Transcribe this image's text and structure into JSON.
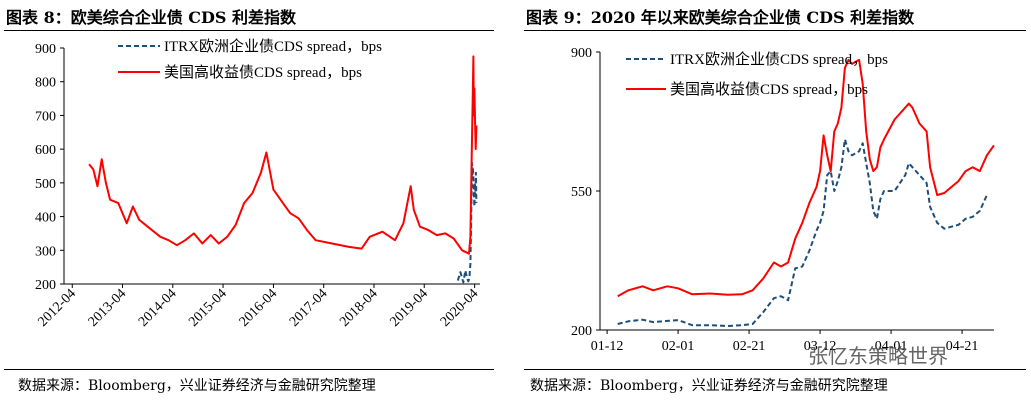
{
  "figures": [
    {
      "title": "图表 8：欧美综合企业债 CDS 利差指数",
      "source": "数据来源：Bloomberg，兴业证券经济与金融研究院整理"
    },
    {
      "title": "图表 9：2020 年以来欧美综合企业债 CDS 利差指数",
      "source": "数据来源：Bloomberg，兴业证券经济与金融研究院整理"
    }
  ],
  "watermark": "张忆东策略世界",
  "colors": {
    "itrx": "#1f4e79",
    "us_hy": "#ff0000"
  },
  "chart_data": [
    {
      "type": "line",
      "title": "图表 8：欧美综合企业债 CDS 利差指数",
      "x_tick_labels": [
        "2012-04",
        "2013-04",
        "2014-04",
        "2015-04",
        "2016-04",
        "2017-04",
        "2018-04",
        "2019-04",
        "2020-04"
      ],
      "y_tick_labels": [
        "200",
        "300",
        "400",
        "500",
        "600",
        "700",
        "800",
        "900"
      ],
      "ylim": [
        200,
        900
      ],
      "legend_position": "top-center",
      "series": [
        {
          "name": "ITRX欧洲企业债CDS spread，bps",
          "style": "dashed",
          "points": [
            [
              "2019-12-01",
              210
            ],
            [
              "2019-12-20",
              235
            ],
            [
              "2020-01-10",
              205
            ],
            [
              "2020-01-25",
              240
            ],
            [
              "2020-02-05",
              220
            ],
            [
              "2020-02-15",
              208
            ],
            [
              "2020-02-22",
              215
            ],
            [
              "2020-03-01",
              260
            ],
            [
              "2020-03-05",
              340
            ],
            [
              "2020-03-10",
              480
            ],
            [
              "2020-03-12",
              560
            ],
            [
              "2020-03-16",
              520
            ],
            [
              "2020-03-19",
              545
            ],
            [
              "2020-03-23",
              520
            ],
            [
              "2020-03-26",
              470
            ],
            [
              "2020-03-30",
              430
            ],
            [
              "2020-04-03",
              500
            ],
            [
              "2020-04-07",
              460
            ],
            [
              "2020-04-10",
              530
            ],
            [
              "2020-04-14",
              440
            ]
          ]
        },
        {
          "name": "美国高收益债CDS spread，bps",
          "style": "solid",
          "points": [
            [
              "2012-08-01",
              555
            ],
            [
              "2012-09-01",
              540
            ],
            [
              "2012-10-01",
              490
            ],
            [
              "2012-11-01",
              570
            ],
            [
              "2012-12-01",
              500
            ],
            [
              "2013-01-01",
              450
            ],
            [
              "2013-03-01",
              440
            ],
            [
              "2013-05-01",
              380
            ],
            [
              "2013-06-15",
              430
            ],
            [
              "2013-08-01",
              390
            ],
            [
              "2013-10-01",
              370
            ],
            [
              "2014-01-01",
              340
            ],
            [
              "2014-03-01",
              330
            ],
            [
              "2014-05-01",
              315
            ],
            [
              "2014-07-01",
              330
            ],
            [
              "2014-09-01",
              350
            ],
            [
              "2014-11-01",
              320
            ],
            [
              "2015-01-01",
              345
            ],
            [
              "2015-03-01",
              320
            ],
            [
              "2015-05-01",
              340
            ],
            [
              "2015-07-01",
              375
            ],
            [
              "2015-09-01",
              440
            ],
            [
              "2015-11-01",
              470
            ],
            [
              "2016-01-01",
              530
            ],
            [
              "2016-02-10",
              590
            ],
            [
              "2016-04-01",
              480
            ],
            [
              "2016-06-01",
              445
            ],
            [
              "2016-08-01",
              410
            ],
            [
              "2016-10-01",
              395
            ],
            [
              "2016-12-01",
              360
            ],
            [
              "2017-02-01",
              330
            ],
            [
              "2017-06-01",
              320
            ],
            [
              "2017-10-01",
              310
            ],
            [
              "2018-01-01",
              305
            ],
            [
              "2018-03-01",
              340
            ],
            [
              "2018-06-01",
              355
            ],
            [
              "2018-09-01",
              330
            ],
            [
              "2018-11-01",
              380
            ],
            [
              "2018-12-24",
              490
            ],
            [
              "2019-01-15",
              420
            ],
            [
              "2019-03-01",
              370
            ],
            [
              "2019-05-01",
              360
            ],
            [
              "2019-07-01",
              345
            ],
            [
              "2019-09-01",
              350
            ],
            [
              "2019-11-01",
              335
            ],
            [
              "2020-01-01",
              300
            ],
            [
              "2020-02-20",
              290
            ],
            [
              "2020-03-01",
              340
            ],
            [
              "2020-03-10",
              560
            ],
            [
              "2020-03-18",
              750
            ],
            [
              "2020-03-23",
              875
            ],
            [
              "2020-03-26",
              700
            ],
            [
              "2020-03-30",
              780
            ],
            [
              "2020-04-02",
              720
            ],
            [
              "2020-04-06",
              650
            ],
            [
              "2020-04-09",
              600
            ],
            [
              "2020-04-14",
              670
            ]
          ]
        }
      ]
    },
    {
      "type": "line",
      "title": "图表 9：2020 年以来欧美综合企业债 CDS 利差指数",
      "x_tick_labels": [
        "01-12",
        "02-01",
        "02-21",
        "03-12",
        "04-01",
        "04-21"
      ],
      "y_tick_labels": [
        "200",
        "550",
        "900"
      ],
      "ylim": [
        200,
        900
      ],
      "legend_position": "top-center",
      "series": [
        {
          "name": "ITRX欧洲企业债CDS spread，bps",
          "style": "dashed",
          "points": [
            [
              "2020-01-15",
              215
            ],
            [
              "2020-01-18",
              222
            ],
            [
              "2020-01-22",
              226
            ],
            [
              "2020-01-25",
              220
            ],
            [
              "2020-01-29",
              223
            ],
            [
              "2020-02-01",
              225
            ],
            [
              "2020-02-05",
              212
            ],
            [
              "2020-02-10",
              212
            ],
            [
              "2020-02-15",
              210
            ],
            [
              "2020-02-19",
              212
            ],
            [
              "2020-02-22",
              215
            ],
            [
              "2020-02-25",
              245
            ],
            [
              "2020-02-28",
              280
            ],
            [
              "2020-03-01",
              285
            ],
            [
              "2020-03-03",
              275
            ],
            [
              "2020-03-05",
              355
            ],
            [
              "2020-03-07",
              360
            ],
            [
              "2020-03-09",
              400
            ],
            [
              "2020-03-11",
              450
            ],
            [
              "2020-03-12",
              470
            ],
            [
              "2020-03-13",
              500
            ],
            [
              "2020-03-14",
              590
            ],
            [
              "2020-03-15",
              600
            ],
            [
              "2020-03-16",
              550
            ],
            [
              "2020-03-17",
              575
            ],
            [
              "2020-03-18",
              610
            ],
            [
              "2020-03-19",
              680
            ],
            [
              "2020-03-20",
              650
            ],
            [
              "2020-03-21",
              640
            ],
            [
              "2020-03-23",
              650
            ],
            [
              "2020-03-24",
              670
            ],
            [
              "2020-03-25",
              620
            ],
            [
              "2020-03-26",
              570
            ],
            [
              "2020-03-27",
              500
            ],
            [
              "2020-03-28",
              480
            ],
            [
              "2020-03-29",
              530
            ],
            [
              "2020-03-30",
              550
            ],
            [
              "2020-04-02",
              550
            ],
            [
              "2020-04-05",
              590
            ],
            [
              "2020-04-06",
              620
            ],
            [
              "2020-04-07",
              610
            ],
            [
              "2020-04-09",
              590
            ],
            [
              "2020-04-11",
              570
            ],
            [
              "2020-04-12",
              510
            ],
            [
              "2020-04-14",
              470
            ],
            [
              "2020-04-16",
              455
            ],
            [
              "2020-04-18",
              460
            ],
            [
              "2020-04-20",
              465
            ],
            [
              "2020-04-22",
              480
            ],
            [
              "2020-04-24",
              485
            ],
            [
              "2020-04-26",
              500
            ],
            [
              "2020-04-28",
              540
            ]
          ]
        },
        {
          "name": "美国高收益债CDS spread，bps",
          "style": "solid",
          "points": [
            [
              "2020-01-15",
              285
            ],
            [
              "2020-01-18",
              300
            ],
            [
              "2020-01-22",
              310
            ],
            [
              "2020-01-25",
              300
            ],
            [
              "2020-01-29",
              310
            ],
            [
              "2020-02-01",
              305
            ],
            [
              "2020-02-05",
              290
            ],
            [
              "2020-02-10",
              292
            ],
            [
              "2020-02-15",
              289
            ],
            [
              "2020-02-19",
              290
            ],
            [
              "2020-02-22",
              300
            ],
            [
              "2020-02-25",
              330
            ],
            [
              "2020-02-28",
              370
            ],
            [
              "2020-03-01",
              360
            ],
            [
              "2020-03-03",
              370
            ],
            [
              "2020-03-05",
              430
            ],
            [
              "2020-03-07",
              470
            ],
            [
              "2020-03-09",
              520
            ],
            [
              "2020-03-11",
              560
            ],
            [
              "2020-03-12",
              600
            ],
            [
              "2020-03-13",
              690
            ],
            [
              "2020-03-14",
              640
            ],
            [
              "2020-03-15",
              600
            ],
            [
              "2020-03-16",
              700
            ],
            [
              "2020-03-17",
              720
            ],
            [
              "2020-03-18",
              760
            ],
            [
              "2020-03-19",
              860
            ],
            [
              "2020-03-20",
              880
            ],
            [
              "2020-03-21",
              870
            ],
            [
              "2020-03-23",
              880
            ],
            [
              "2020-03-24",
              820
            ],
            [
              "2020-03-25",
              700
            ],
            [
              "2020-03-26",
              630
            ],
            [
              "2020-03-27",
              600
            ],
            [
              "2020-03-28",
              610
            ],
            [
              "2020-03-29",
              660
            ],
            [
              "2020-03-30",
              680
            ],
            [
              "2020-04-02",
              730
            ],
            [
              "2020-04-05",
              760
            ],
            [
              "2020-04-06",
              770
            ],
            [
              "2020-04-07",
              760
            ],
            [
              "2020-04-09",
              720
            ],
            [
              "2020-04-11",
              700
            ],
            [
              "2020-04-12",
              610
            ],
            [
              "2020-04-14",
              540
            ],
            [
              "2020-04-16",
              545
            ],
            [
              "2020-04-18",
              560
            ],
            [
              "2020-04-20",
              575
            ],
            [
              "2020-04-22",
              600
            ],
            [
              "2020-04-24",
              610
            ],
            [
              "2020-04-26",
              600
            ],
            [
              "2020-04-28",
              640
            ],
            [
              "2020-04-30",
              665
            ]
          ]
        }
      ]
    }
  ]
}
